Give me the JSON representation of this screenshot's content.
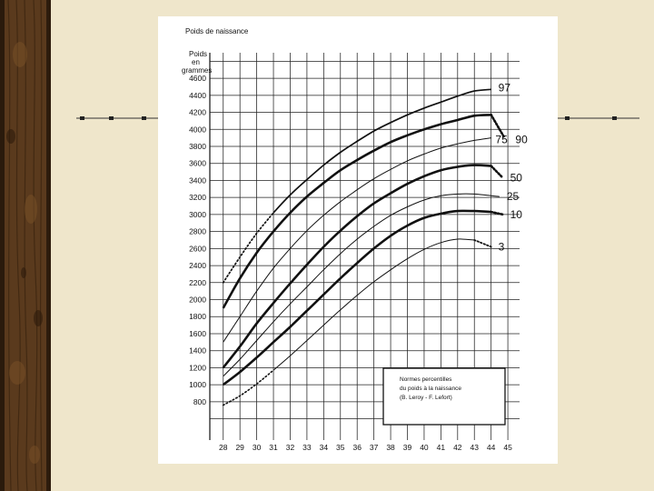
{
  "chart_data": {
    "type": "line",
    "title": "Poids de naissance",
    "ylabel_lines": [
      "Poids",
      "en",
      "grammes"
    ],
    "x": [
      28,
      29,
      30,
      31,
      32,
      33,
      34,
      35,
      36,
      37,
      38,
      39,
      40,
      41,
      42,
      43,
      44,
      45
    ],
    "y_ticks": [
      800,
      1000,
      1200,
      1400,
      1600,
      1800,
      2000,
      2200,
      2400,
      2600,
      2800,
      3000,
      3200,
      3400,
      3600,
      3800,
      4000,
      4200,
      4400,
      4600
    ],
    "xlim": [
      27.2,
      45.7
    ],
    "ylim": [
      350,
      4900
    ],
    "grid": true,
    "series": [
      {
        "name": "97",
        "style": "medium",
        "x": [
          28,
          29,
          30,
          31,
          32,
          33,
          34,
          35,
          36,
          37,
          38,
          39,
          40,
          41,
          42,
          43,
          44
        ],
        "values": [
          2200,
          2500,
          2780,
          3020,
          3230,
          3410,
          3580,
          3730,
          3860,
          3980,
          4080,
          4170,
          4250,
          4320,
          4390,
          4450,
          4470
        ],
        "dotted_to": 31
      },
      {
        "name": "90",
        "style": "bold",
        "x": [
          28,
          29,
          30,
          31,
          32,
          33,
          34,
          35,
          36,
          37,
          38,
          39,
          40,
          41,
          42,
          43,
          44,
          44.8
        ],
        "values": [
          1900,
          2250,
          2550,
          2800,
          3020,
          3210,
          3370,
          3520,
          3640,
          3750,
          3850,
          3930,
          4000,
          4060,
          4110,
          4160,
          4170,
          3900
        ],
        "dotted_from": 44
      },
      {
        "name": "75",
        "style": "thin",
        "x": [
          28,
          29,
          30,
          31,
          32,
          33,
          34,
          35,
          36,
          37,
          38,
          39,
          40,
          41,
          42,
          43,
          44
        ],
        "values": [
          1500,
          1800,
          2100,
          2370,
          2600,
          2810,
          2990,
          3150,
          3290,
          3420,
          3530,
          3630,
          3710,
          3780,
          3830,
          3870,
          3900
        ]
      },
      {
        "name": "50",
        "style": "bold",
        "x": [
          28,
          29,
          30,
          31,
          32,
          33,
          34,
          35,
          36,
          37,
          38,
          39,
          40,
          41,
          42,
          43,
          44,
          44.7
        ],
        "values": [
          1200,
          1450,
          1720,
          1960,
          2190,
          2410,
          2620,
          2810,
          2980,
          3130,
          3250,
          3360,
          3450,
          3520,
          3560,
          3580,
          3570,
          3430
        ],
        "dotted_from": 44
      },
      {
        "name": "25",
        "style": "thin",
        "x": [
          28,
          29,
          30,
          31,
          32,
          33,
          34,
          35,
          36,
          37,
          38,
          39,
          40,
          41,
          42,
          43,
          44,
          44.5
        ],
        "values": [
          1100,
          1300,
          1520,
          1740,
          1950,
          2150,
          2350,
          2540,
          2710,
          2860,
          2990,
          3090,
          3170,
          3220,
          3240,
          3240,
          3220,
          3210
        ]
      },
      {
        "name": "10",
        "style": "bold",
        "x": [
          28,
          29,
          30,
          31,
          32,
          33,
          34,
          35,
          36,
          37,
          38,
          39,
          40,
          41,
          42,
          43,
          44,
          44.7
        ],
        "values": [
          1000,
          1150,
          1320,
          1500,
          1680,
          1870,
          2060,
          2250,
          2430,
          2600,
          2750,
          2870,
          2960,
          3010,
          3040,
          3040,
          3030,
          3000
        ],
        "dotted_from": 44
      },
      {
        "name": "3",
        "style": "thin",
        "x": [
          28,
          29,
          30,
          31,
          32,
          33,
          34,
          35,
          36,
          37,
          38,
          39,
          40,
          41,
          42,
          43,
          44
        ],
        "values": [
          760,
          870,
          1010,
          1170,
          1340,
          1520,
          1700,
          1880,
          2050,
          2210,
          2350,
          2480,
          2590,
          2670,
          2710,
          2700,
          2620
        ],
        "dotted_to": 31,
        "dotted_from": 43
      }
    ],
    "label_positions_hint": "right of curve ends; 75 and 90 share a row at about 3820 g",
    "legend": {
      "position": "bottom-right",
      "lines": [
        "Normes percentilles",
        "du poids à la naissance",
        "(B. Leroy - F. Lefort)"
      ]
    }
  }
}
